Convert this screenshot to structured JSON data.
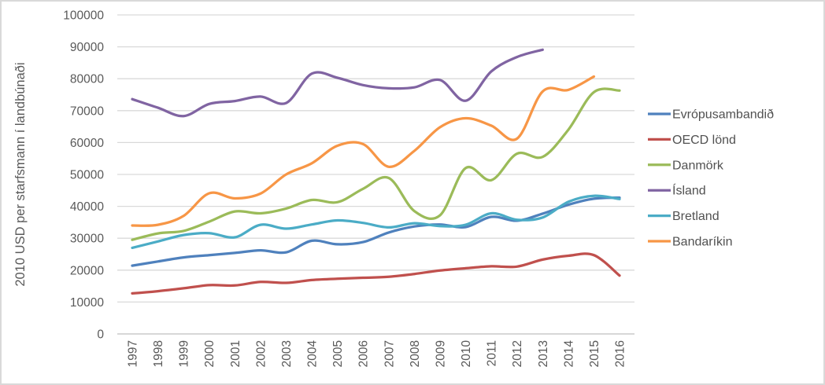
{
  "chart_data": {
    "type": "line",
    "smooth": true,
    "title": "",
    "xlabel": "",
    "ylabel": "2010 USD per starfsmann í landbúnaði",
    "ylim": [
      0,
      100000
    ],
    "yticks": [
      0,
      10000,
      20000,
      30000,
      40000,
      50000,
      60000,
      70000,
      80000,
      90000,
      100000
    ],
    "ytick_labels": [
      "0",
      "10000",
      "20000",
      "30000",
      "40000",
      "50000",
      "60000",
      "70000",
      "80000",
      "90000",
      "100000"
    ],
    "grid": "horizontal",
    "legend_position": "right",
    "categories": [
      "1997",
      "1998",
      "1999",
      "2000",
      "2001",
      "2002",
      "2003",
      "2004",
      "2005",
      "2006",
      "2007",
      "2008",
      "2009",
      "2010",
      "2011",
      "2012",
      "2013",
      "2014",
      "2015",
      "2016"
    ],
    "series": [
      {
        "name": "Evrópusambandið",
        "color": "#4F81BD",
        "values": [
          21400,
          22700,
          24000,
          24700,
          25400,
          26200,
          25600,
          29200,
          28100,
          28800,
          31800,
          33700,
          34300,
          33500,
          36700,
          35500,
          37700,
          40500,
          42400,
          42700
        ]
      },
      {
        "name": "OECD lönd",
        "color": "#C0504D",
        "values": [
          12700,
          13400,
          14300,
          15300,
          15200,
          16300,
          16000,
          16900,
          17300,
          17600,
          17900,
          18800,
          19900,
          20600,
          21200,
          21100,
          23300,
          24500,
          24700,
          18300
        ]
      },
      {
        "name": "Danmörk",
        "color": "#9BBB59",
        "values": [
          29500,
          31500,
          32300,
          35200,
          38400,
          37800,
          39300,
          42000,
          41300,
          45500,
          48900,
          38500,
          37200,
          52000,
          48200,
          56500,
          55500,
          64000,
          75800,
          76300
        ]
      },
      {
        "name": "Ísland",
        "color": "#8064A2",
        "values": [
          73600,
          70900,
          68300,
          72100,
          73000,
          74400,
          72400,
          81600,
          80300,
          78000,
          77000,
          77300,
          79600,
          73100,
          82300,
          86800,
          89100,
          null,
          null,
          null
        ]
      },
      {
        "name": "Bretland",
        "color": "#4BACC6",
        "values": [
          27000,
          29000,
          31000,
          31600,
          30300,
          34200,
          33000,
          34300,
          35600,
          34800,
          33400,
          34700,
          33800,
          34200,
          37800,
          35800,
          36500,
          41400,
          43300,
          42300
        ]
      },
      {
        "name": "Bandaríkin",
        "color": "#F79646",
        "values": [
          34000,
          34200,
          37000,
          44100,
          42500,
          44000,
          50000,
          53500,
          59000,
          59500,
          52400,
          57400,
          64800,
          67600,
          65300,
          61200,
          76000,
          76500,
          80700,
          null
        ]
      }
    ],
    "colors": {
      "gridline": "#D9D9D9",
      "axis_line": "#BFBFBF",
      "tick_text": "#595959",
      "legend_text": "#515151"
    }
  }
}
